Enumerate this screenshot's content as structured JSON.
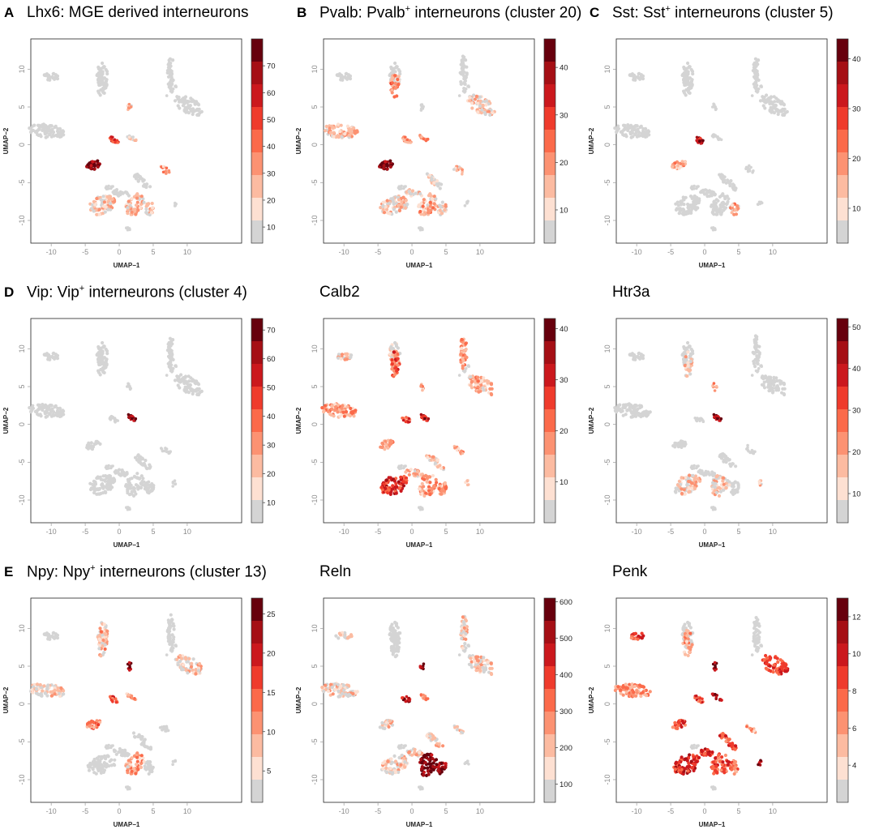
{
  "figure": {
    "labels": [
      "A",
      "B",
      "C",
      "D",
      "E"
    ]
  },
  "chart_data": [
    {
      "type": "scatter",
      "panel_label": "A",
      "title_main": "Lhx6: MGE derived interneurons",
      "title_sup": "",
      "title_after": "",
      "xlabel": "UMAP−1",
      "ylabel": "UMAP−2",
      "xticks": [
        -10,
        -5,
        0,
        5,
        10
      ],
      "yticks": [
        10,
        5,
        0,
        -5,
        -10
      ],
      "xlim": [
        -13,
        18
      ],
      "ylim": [
        -13,
        14
      ],
      "legend": {
        "min": 4,
        "max": 80,
        "ticks": [
          10,
          20,
          30,
          40,
          50,
          60,
          70
        ]
      },
      "cluster_expression": {
        "c1": 0.02,
        "c2": 0.02,
        "c3": 0.02,
        "c4": 0.25,
        "c5": 0.02,
        "c6": 0.02,
        "c7": 0.02,
        "c8": 0.08,
        "c9": 0.65,
        "c10": 0.9,
        "c11": 0.25,
        "c12": 0.02,
        "c13": 0.15,
        "c14": 0.02,
        "c15": 0.18,
        "c16": 0.12,
        "c17": 0.02
      }
    },
    {
      "type": "scatter",
      "panel_label": "B",
      "title_main": "Pvalb: Pvalb",
      "title_sup": "+",
      "title_after": " interneurons (cluster 20)",
      "xlabel": "UMAP−1",
      "ylabel": "UMAP−2",
      "xticks": [
        -10,
        -5,
        0,
        5,
        10
      ],
      "yticks": [
        10,
        5,
        0,
        -5,
        -10
      ],
      "xlim": [
        -13,
        18
      ],
      "ylim": [
        -13,
        14
      ],
      "legend": {
        "min": 3,
        "max": 46,
        "ticks": [
          10,
          20,
          30,
          40
        ]
      },
      "cluster_expression": {
        "c1": 0.02,
        "c2": 0.02,
        "c3": 0.32,
        "c4": 0.02,
        "c5": 0.02,
        "c6": 0.12,
        "c7": 0.18,
        "c8": 0.3,
        "c9": 0.35,
        "c10": 0.92,
        "c11": 0.1,
        "c12": 0.08,
        "c13": 0.12,
        "c14": 0.12,
        "c15": 0.2,
        "c16": 0.12,
        "c17": 0.02
      }
    },
    {
      "type": "scatter",
      "panel_label": "C",
      "title_main": "Sst: Sst",
      "title_sup": "+",
      "title_after": " interneurons (cluster 5)",
      "xlabel": "UMAP−1",
      "ylabel": "UMAP−2",
      "xticks": [
        -10,
        -5,
        0,
        5,
        10
      ],
      "yticks": [
        10,
        5,
        0,
        -5,
        -10
      ],
      "xlim": [
        -13,
        18
      ],
      "ylim": [
        -13,
        14
      ],
      "legend": {
        "min": 3,
        "max": 44,
        "ticks": [
          10,
          20,
          30,
          40
        ]
      },
      "cluster_expression": {
        "c1": 0.02,
        "c2": 0.02,
        "c3": 0.02,
        "c4": 0.02,
        "c5": 0.02,
        "c6": 0.02,
        "c7": 0.02,
        "c8": 0.02,
        "c9": 0.75,
        "c10": 0.25,
        "c11": 0.02,
        "c12": 0.02,
        "c13": 0.02,
        "c14": 0.02,
        "c15": 0.02,
        "c16": 0.2,
        "c17": 0.02
      }
    },
    {
      "type": "scatter",
      "panel_label": "D",
      "title_main": "Vip: Vip",
      "title_sup": "+",
      "title_after": " interneurons (cluster 4)",
      "xlabel": "UMAP−1",
      "ylabel": "UMAP−2",
      "xticks": [
        -10,
        -5,
        0,
        5,
        10
      ],
      "yticks": [
        10,
        5,
        0,
        -5,
        -10
      ],
      "xlim": [
        -13,
        18
      ],
      "ylim": [
        -13,
        14
      ],
      "legend": {
        "min": 3,
        "max": 74,
        "ticks": [
          10,
          20,
          30,
          40,
          50,
          60,
          70
        ]
      },
      "cluster_expression": {
        "c1": 0.02,
        "c2": 0.02,
        "c3": 0.02,
        "c4": 0.02,
        "c5": 0.02,
        "c6": 0.02,
        "c7": 0.02,
        "c8": 0.85,
        "c9": 0.02,
        "c10": 0.02,
        "c11": 0.02,
        "c12": 0.02,
        "c13": 0.02,
        "c14": 0.02,
        "c15": 0.02,
        "c16": 0.02,
        "c17": 0.02
      }
    },
    {
      "type": "scatter",
      "panel_label": "",
      "title_main": "Calb2",
      "title_sup": "",
      "title_after": "",
      "xlabel": "UMAP−1",
      "ylabel": "UMAP−2",
      "xticks": [
        -10,
        -5,
        0,
        5,
        10
      ],
      "yticks": [
        10,
        5,
        0,
        -5,
        -10
      ],
      "xlim": [
        -13,
        18
      ],
      "ylim": [
        -13,
        14
      ],
      "legend": {
        "min": 2,
        "max": 42,
        "ticks": [
          10,
          20,
          30,
          40
        ]
      },
      "cluster_expression": {
        "c1": 0.15,
        "c2": 0.12,
        "c3": 0.45,
        "c4": 0.2,
        "c5": 0.3,
        "c6": 0.2,
        "c7": 0.28,
        "c8": 0.7,
        "c9": 0.5,
        "c10": 0.32,
        "c11": 0.28,
        "c12": 0.15,
        "c13": 0.62,
        "c14": 0.2,
        "c15": 0.3,
        "c16": 0.3,
        "c17": 0.15
      }
    },
    {
      "type": "scatter",
      "panel_label": "",
      "title_main": "Htr3a",
      "title_sup": "",
      "title_after": "",
      "xlabel": "UMAP−1",
      "ylabel": "UMAP−2",
      "xticks": [
        -10,
        -5,
        0,
        5,
        10
      ],
      "yticks": [
        10,
        5,
        0,
        -5,
        -10
      ],
      "xlim": [
        -13,
        18
      ],
      "ylim": [
        -13,
        14
      ],
      "legend": {
        "min": 3,
        "max": 52,
        "ticks": [
          10,
          20,
          30,
          40,
          50
        ]
      },
      "cluster_expression": {
        "c1": 0.02,
        "c2": 0.02,
        "c3": 0.08,
        "c4": 0.25,
        "c5": 0.02,
        "c6": 0.02,
        "c7": 0.02,
        "c8": 0.82,
        "c9": 0.02,
        "c10": 0.02,
        "c11": 0.05,
        "c12": 0.02,
        "c13": 0.12,
        "c14": 0.02,
        "c15": 0.12,
        "c16": 0.02,
        "c17": 0.12
      }
    },
    {
      "type": "scatter",
      "panel_label": "E",
      "title_main": "Npy: Npy",
      "title_sup": "+",
      "title_after": " interneurons (cluster 13)",
      "xlabel": "UMAP−1",
      "ylabel": "UMAP−2",
      "xticks": [
        -10,
        -5,
        0,
        5,
        10
      ],
      "yticks": [
        10,
        5,
        0,
        -5,
        -10
      ],
      "xlim": [
        -13,
        18
      ],
      "ylim": [
        -13,
        14
      ],
      "legend": {
        "min": 1,
        "max": 27,
        "ticks": [
          5,
          10,
          15,
          20,
          25
        ]
      },
      "cluster_expression": {
        "c1": 0.02,
        "c2": 0.15,
        "c3": 0.2,
        "c4": 0.85,
        "c5": 0.02,
        "c6": 0.12,
        "c7": 0.08,
        "c8": 0.3,
        "c9": 0.5,
        "c10": 0.4,
        "c11": 0.02,
        "c12": 0.02,
        "c13": 0.02,
        "c14": 0.02,
        "c15": 0.25,
        "c16": 0.02,
        "c17": 0.02
      }
    },
    {
      "type": "scatter",
      "panel_label": "",
      "title_main": "Reln",
      "title_sup": "",
      "title_after": "",
      "xlabel": "UMAP−1",
      "ylabel": "UMAP−2",
      "xticks": [
        -10,
        -5,
        0,
        5,
        10
      ],
      "yticks": [
        10,
        5,
        0,
        -5,
        -10
      ],
      "xlim": [
        -13,
        18
      ],
      "ylim": [
        -13,
        14
      ],
      "legend": {
        "min": 50,
        "max": 610,
        "ticks": [
          100,
          200,
          300,
          400,
          500,
          600
        ]
      },
      "cluster_expression": {
        "c1": 0.1,
        "c2": 0.02,
        "c3": 0.02,
        "c4": 0.85,
        "c5": 0.15,
        "c6": 0.1,
        "c7": 0.1,
        "c8": 0.35,
        "c9": 0.7,
        "c10": 0.1,
        "c11": 0.1,
        "c12": 0.1,
        "c13": 0.1,
        "c14": 0.1,
        "c15": 0.92,
        "c16": 0.85,
        "c17": 0.02
      }
    },
    {
      "type": "scatter",
      "panel_label": "",
      "title_main": "Penk",
      "title_sup": "",
      "title_after": "",
      "xlabel": "UMAP−1",
      "ylabel": "UMAP−2",
      "xticks": [
        -10,
        -5,
        0,
        5,
        10
      ],
      "yticks": [
        10,
        5,
        0,
        -5,
        -10
      ],
      "xlim": [
        -13,
        18
      ],
      "ylim": [
        -13,
        14
      ],
      "legend": {
        "min": 2,
        "max": 13,
        "ticks": [
          4,
          6,
          8,
          10,
          12
        ]
      },
      "cluster_expression": {
        "c1": 0.55,
        "c2": 0.02,
        "c3": 0.25,
        "c4": 0.85,
        "c5": 0.02,
        "c6": 0.55,
        "c7": 0.3,
        "c8": 0.75,
        "c9": 0.5,
        "c10": 0.5,
        "c11": 0.3,
        "c12": 0.5,
        "c13": 0.65,
        "c14": 0.6,
        "c15": 0.5,
        "c16": 0.4,
        "c17": 0.82
      }
    }
  ]
}
